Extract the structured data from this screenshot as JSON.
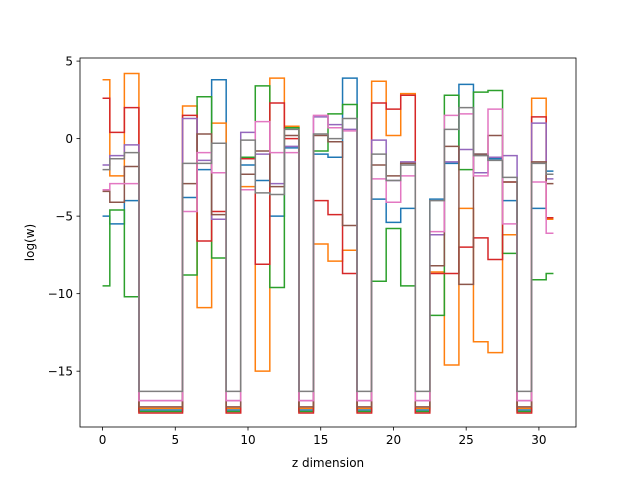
{
  "chart_data": {
    "type": "line",
    "drawstyle": "steps-mid",
    "title": "",
    "xlabel": "z dimension",
    "ylabel": "log(w)",
    "xlim": [
      -1.55,
      32.55
    ],
    "ylim": [
      -18.6,
      5.2
    ],
    "xticks": [
      0,
      5,
      10,
      15,
      20,
      25,
      30
    ],
    "xtick_labels": [
      "0",
      "5",
      "10",
      "15",
      "20",
      "25",
      "30"
    ],
    "yticks": [
      5,
      0,
      -5,
      -10,
      -15
    ],
    "ytick_labels": [
      "5",
      "0",
      "−5",
      "−10",
      "−15"
    ],
    "grid": false,
    "legend": false,
    "x": [
      0,
      1,
      2,
      3,
      4,
      5,
      6,
      7,
      8,
      9,
      10,
      11,
      12,
      13,
      14,
      15,
      16,
      17,
      18,
      19,
      20,
      21,
      22,
      23,
      24,
      25,
      26,
      27,
      28,
      29,
      30,
      31
    ],
    "series": [
      {
        "color": "#1f77b4",
        "values": [
          -5.0,
          -5.5,
          -4.0,
          -17.5,
          -17.5,
          -17.5,
          -3.8,
          -2.0,
          3.8,
          -17.5,
          -1.7,
          -2.7,
          -5.0,
          -0.6,
          -17.5,
          -1.0,
          -1.2,
          3.9,
          -17.5,
          -3.9,
          -5.4,
          -4.5,
          -17.5,
          -3.9,
          -1.6,
          3.5,
          -1.0,
          -1.3,
          -4.0,
          -17.5,
          -4.5,
          -2.1
        ]
      },
      {
        "color": "#ff7f0e",
        "values": [
          3.8,
          -2.4,
          4.2,
          -17.4,
          -17.4,
          -17.4,
          2.1,
          -10.9,
          1.0,
          -17.4,
          -3.1,
          -15.0,
          3.9,
          0.8,
          -17.4,
          -6.8,
          -7.9,
          -7.2,
          -17.4,
          3.7,
          0.2,
          2.9,
          -17.4,
          -8.6,
          -14.6,
          -4.5,
          -13.1,
          -13.8,
          -6.2,
          -17.4,
          2.6,
          -5.2
        ]
      },
      {
        "color": "#2ca02c",
        "values": [
          -9.5,
          -4.6,
          -10.2,
          -17.6,
          -17.6,
          -17.6,
          -8.8,
          2.7,
          -7.7,
          -17.6,
          -1.2,
          3.4,
          -9.6,
          0.7,
          -17.6,
          -0.8,
          1.6,
          2.2,
          -17.6,
          -9.2,
          -5.8,
          -9.5,
          -17.6,
          -11.4,
          2.8,
          -2.0,
          3.0,
          3.1,
          -7.4,
          -17.6,
          -9.1,
          -8.7
        ]
      },
      {
        "color": "#d62728",
        "values": [
          2.6,
          0.4,
          2.0,
          -17.7,
          -17.7,
          -17.7,
          1.5,
          -6.6,
          -4.7,
          -17.7,
          -1.3,
          -8.1,
          2.3,
          0.0,
          -17.7,
          -4.0,
          -4.9,
          -8.7,
          -17.7,
          2.3,
          1.9,
          2.8,
          -17.7,
          -8.7,
          -8.7,
          -7.0,
          -6.4,
          -7.8,
          -2.8,
          -17.7,
          1.4,
          -5.1
        ]
      },
      {
        "color": "#9467bd",
        "values": [
          -1.7,
          -1.1,
          -0.4,
          -16.9,
          -16.9,
          -16.9,
          1.3,
          -1.4,
          -5.2,
          -16.9,
          0.4,
          -1.0,
          -2.9,
          -0.5,
          -16.9,
          1.4,
          0.9,
          0.6,
          -16.9,
          -0.1,
          -2.7,
          -1.5,
          -16.9,
          -6.2,
          -1.5,
          -0.7,
          -2.2,
          -1.2,
          -1.1,
          -16.9,
          1.0,
          -2.6
        ]
      },
      {
        "color": "#8c564b",
        "values": [
          -3.4,
          -4.1,
          -1.8,
          -17.3,
          -17.3,
          -17.3,
          -2.9,
          0.3,
          -4.9,
          -17.3,
          -2.3,
          -0.8,
          -3.1,
          0.2,
          -17.3,
          0.2,
          -0.2,
          -5.6,
          -17.3,
          -1.7,
          -2.4,
          -1.6,
          -17.3,
          -8.2,
          -0.5,
          -9.4,
          -1.0,
          0.2,
          -2.8,
          -17.3,
          -1.5,
          -2.9
        ]
      },
      {
        "color": "#e377c2",
        "values": [
          -3.3,
          -2.9,
          -2.9,
          -16.9,
          -16.9,
          -16.9,
          -4.7,
          -0.9,
          -2.2,
          -16.9,
          -3.3,
          1.1,
          -0.9,
          -0.9,
          -16.9,
          1.5,
          0.7,
          0.5,
          -16.9,
          -2.6,
          -4.1,
          -2.4,
          -16.9,
          -6.0,
          1.5,
          1.6,
          -2.4,
          1.9,
          -5.5,
          -16.9,
          -2.8,
          -6.1
        ]
      },
      {
        "color": "#7f7f7f",
        "values": [
          -2.0,
          -1.3,
          -0.9,
          -16.3,
          -16.3,
          -16.3,
          -1.6,
          -1.6,
          -0.3,
          -16.3,
          -0.1,
          -3.5,
          -3.6,
          0.6,
          -16.3,
          0.3,
          0.0,
          1.3,
          -16.3,
          -1.0,
          -2.7,
          -1.7,
          -16.3,
          -4.0,
          0.6,
          2.0,
          -1.1,
          -1.4,
          -2.5,
          -16.3,
          -1.6,
          -2.3
        ]
      }
    ]
  }
}
